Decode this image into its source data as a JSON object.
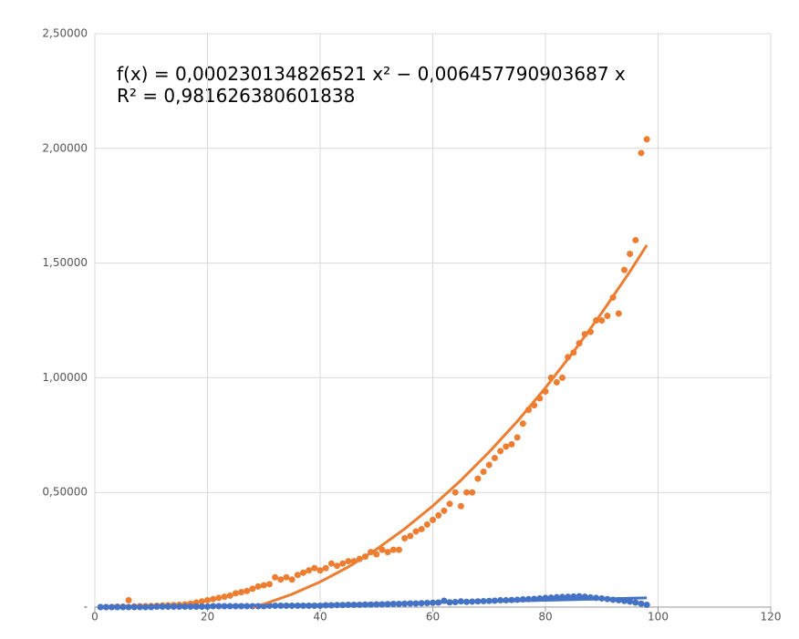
{
  "chart_data": {
    "type": "scatter",
    "annotations": [
      "f(x) = 0,000230134826521 x² − 0,006457790903687 x",
      "R² = 0,981626380601838"
    ],
    "xlim": [
      0,
      120
    ],
    "xticks": [
      0,
      20,
      40,
      60,
      80,
      100,
      120
    ],
    "ylim": [
      0,
      2.5
    ],
    "yticks": [
      {
        "value": 0,
        "label": "-"
      },
      {
        "value": 0.5,
        "label": "0,50000"
      },
      {
        "value": 1,
        "label": "1,00000"
      },
      {
        "value": 1.5,
        "label": "1,50000"
      },
      {
        "value": 2,
        "label": "2,00000"
      },
      {
        "value": 2.5,
        "label": "2,50000"
      }
    ],
    "grid": true,
    "series": [
      {
        "type": "scatter",
        "color": "#ed7d31",
        "x": [
          1,
          2,
          3,
          4,
          5,
          6,
          7,
          8,
          9,
          10,
          11,
          12,
          13,
          14,
          15,
          16,
          17,
          18,
          19,
          20,
          21,
          22,
          23,
          24,
          25,
          26,
          27,
          28,
          29,
          30,
          31,
          32,
          33,
          34,
          35,
          36,
          37,
          38,
          39,
          40,
          41,
          42,
          43,
          44,
          45,
          46,
          47,
          48,
          49,
          50,
          51,
          52,
          53,
          54,
          55,
          56,
          57,
          58,
          59,
          60,
          61,
          62,
          63,
          64,
          65,
          66,
          67,
          68,
          69,
          70,
          71,
          72,
          73,
          74,
          75,
          76,
          77,
          78,
          79,
          80,
          81,
          82,
          83,
          84,
          85,
          86,
          87,
          88,
          89,
          90,
          91,
          92,
          93,
          94,
          95,
          96,
          97,
          98
        ],
        "values": [
          0,
          0,
          0,
          0.002,
          0.002,
          0.03,
          0.003,
          0.004,
          0.004,
          0.005,
          0.006,
          0.007,
          0.008,
          0.009,
          0.01,
          0.012,
          0.015,
          0.02,
          0.025,
          0.03,
          0.035,
          0.04,
          0.045,
          0.05,
          0.06,
          0.065,
          0.07,
          0.08,
          0.09,
          0.095,
          0.1,
          0.13,
          0.12,
          0.13,
          0.12,
          0.14,
          0.15,
          0.16,
          0.17,
          0.16,
          0.17,
          0.19,
          0.18,
          0.19,
          0.2,
          0.2,
          0.21,
          0.22,
          0.24,
          0.23,
          0.25,
          0.24,
          0.25,
          0.25,
          0.3,
          0.31,
          0.33,
          0.34,
          0.36,
          0.38,
          0.4,
          0.42,
          0.45,
          0.5,
          0.44,
          0.5,
          0.5,
          0.56,
          0.59,
          0.62,
          0.65,
          0.68,
          0.7,
          0.71,
          0.74,
          0.8,
          0.86,
          0.88,
          0.91,
          0.94,
          1.0,
          0.98,
          1.0,
          1.09,
          1.11,
          1.15,
          1.19,
          1.2,
          1.25,
          1.25,
          1.27,
          1.35,
          1.28,
          1.47,
          1.54,
          1.6,
          1.98,
          2.04
        ]
      },
      {
        "type": "scatter",
        "color": "#4472c4",
        "x": [
          1,
          2,
          3,
          4,
          5,
          6,
          7,
          8,
          9,
          10,
          11,
          12,
          13,
          14,
          15,
          16,
          17,
          18,
          19,
          20,
          21,
          22,
          23,
          24,
          25,
          26,
          27,
          28,
          29,
          30,
          31,
          32,
          33,
          34,
          35,
          36,
          37,
          38,
          39,
          40,
          41,
          42,
          43,
          44,
          45,
          46,
          47,
          48,
          49,
          50,
          51,
          52,
          53,
          54,
          55,
          56,
          57,
          58,
          59,
          60,
          61,
          62,
          63,
          64,
          65,
          66,
          67,
          68,
          69,
          70,
          71,
          72,
          73,
          74,
          75,
          76,
          77,
          78,
          79,
          80,
          81,
          82,
          83,
          84,
          85,
          86,
          87,
          88,
          89,
          90,
          91,
          92,
          93,
          94,
          95,
          96,
          97,
          98
        ],
        "values": [
          0,
          0,
          0,
          0,
          0,
          0,
          0,
          0,
          0,
          0,
          0.002,
          0.002,
          0.002,
          0.002,
          0.002,
          0.002,
          0.002,
          0.002,
          0.002,
          0.002,
          0.004,
          0.004,
          0.004,
          0.004,
          0.004,
          0.004,
          0.004,
          0.004,
          0.004,
          0.004,
          0.006,
          0.006,
          0.006,
          0.006,
          0.006,
          0.006,
          0.006,
          0.006,
          0.006,
          0.006,
          0.008,
          0.008,
          0.009,
          0.009,
          0.01,
          0.01,
          0.01,
          0.011,
          0.011,
          0.012,
          0.012,
          0.013,
          0.014,
          0.014,
          0.015,
          0.016,
          0.016,
          0.017,
          0.018,
          0.019,
          0.02,
          0.028,
          0.021,
          0.022,
          0.025,
          0.023,
          0.024,
          0.025,
          0.026,
          0.027,
          0.028,
          0.03,
          0.03,
          0.031,
          0.032,
          0.034,
          0.035,
          0.036,
          0.038,
          0.04,
          0.041,
          0.043,
          0.044,
          0.045,
          0.046,
          0.047,
          0.045,
          0.042,
          0.04,
          0.038,
          0.035,
          0.032,
          0.03,
          0.027,
          0.024,
          0.02,
          0.015,
          0.01
        ]
      },
      {
        "type": "line",
        "color": "#ed7d31",
        "x": [
          28,
          30,
          35,
          40,
          45,
          50,
          55,
          60,
          65,
          70,
          75,
          80,
          85,
          90,
          95,
          98
        ],
        "values": [
          0,
          0.013,
          0.056,
          0.11,
          0.175,
          0.252,
          0.341,
          0.441,
          0.553,
          0.676,
          0.81,
          0.956,
          1.114,
          1.283,
          1.463,
          1.578
        ]
      },
      {
        "type": "line",
        "color": "#4472c4",
        "x": [
          1,
          20,
          40,
          60,
          80,
          98
        ],
        "values": [
          0,
          0.005,
          0.01,
          0.02,
          0.03,
          0.04
        ]
      }
    ]
  }
}
